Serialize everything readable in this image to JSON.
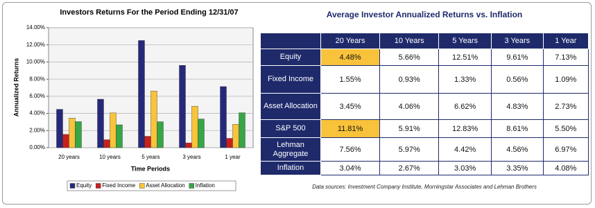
{
  "chart_data": {
    "type": "bar",
    "title": "Investors Returns For the Period Ending 12/31/07",
    "x_label": "Time Periods",
    "y_label": "Annualized Returns",
    "categories": [
      "20 years",
      "10 years",
      "5 years",
      "3 years",
      "1 year"
    ],
    "series": [
      {
        "name": "Equity",
        "color": "#26297a",
        "values": [
          4.48,
          5.66,
          12.51,
          9.61,
          7.13
        ]
      },
      {
        "name": "Fixed Income",
        "color": "#c8201e",
        "values": [
          1.55,
          0.93,
          1.33,
          0.56,
          1.09
        ]
      },
      {
        "name": "Asset Allocation",
        "color": "#f8c43a",
        "values": [
          3.45,
          4.06,
          6.62,
          4.83,
          2.73
        ]
      },
      {
        "name": "Inflation",
        "color": "#36a647",
        "values": [
          3.04,
          2.67,
          3.03,
          3.35,
          4.08
        ]
      }
    ],
    "ylim": [
      0,
      14
    ],
    "yticks": [
      {
        "value": 0,
        "label": "0.00%"
      },
      {
        "value": 2,
        "label": "2.00%"
      },
      {
        "value": 4,
        "label": "4.00%"
      },
      {
        "value": 6,
        "label": "6.00%"
      },
      {
        "value": 8,
        "label": "8.00%"
      },
      {
        "value": 10,
        "label": "10.00%"
      },
      {
        "value": 12,
        "label": "12.00%"
      },
      {
        "value": 14,
        "label": "14.00%"
      }
    ],
    "grid": true,
    "legend": "bottom"
  },
  "table": {
    "title": "Average Investor Annualized Returns vs. Inflation",
    "columns": [
      "20 Years",
      "10 Years",
      "5 Years",
      "3 Years",
      "1 Year"
    ],
    "rows": [
      {
        "label": "Equity",
        "cells": [
          "4.48%",
          "5.66%",
          "12.51%",
          "9.61%",
          "7.13%"
        ]
      },
      {
        "label": "Fixed Income",
        "cells": [
          "1.55%",
          "0.93%",
          "1.33%",
          "0.56%",
          "1.09%"
        ]
      },
      {
        "label": "Asset Allocation",
        "cells": [
          "3.45%",
          "4.06%",
          "6.62%",
          "4.83%",
          "2.73%"
        ]
      },
      {
        "label": "S&P 500",
        "cells": [
          "11.81%",
          "5.91%",
          "12.83%",
          "8.61%",
          "5.50%"
        ]
      },
      {
        "label": "Lehman Aggregate",
        "cells": [
          "7.56%",
          "5.97%",
          "4.42%",
          "4.56%",
          "6.97%"
        ]
      },
      {
        "label": "Inflation",
        "cells": [
          "3.04%",
          "2.67%",
          "3.03%",
          "3.35%",
          "4.08%"
        ]
      }
    ],
    "highlighted": [
      [
        0,
        0
      ],
      [
        3,
        0
      ]
    ],
    "highlight_color": "#f8c23a",
    "note": "Data sources: Investment Company Institute, Morningstar Associates and Lehman Brothers"
  }
}
